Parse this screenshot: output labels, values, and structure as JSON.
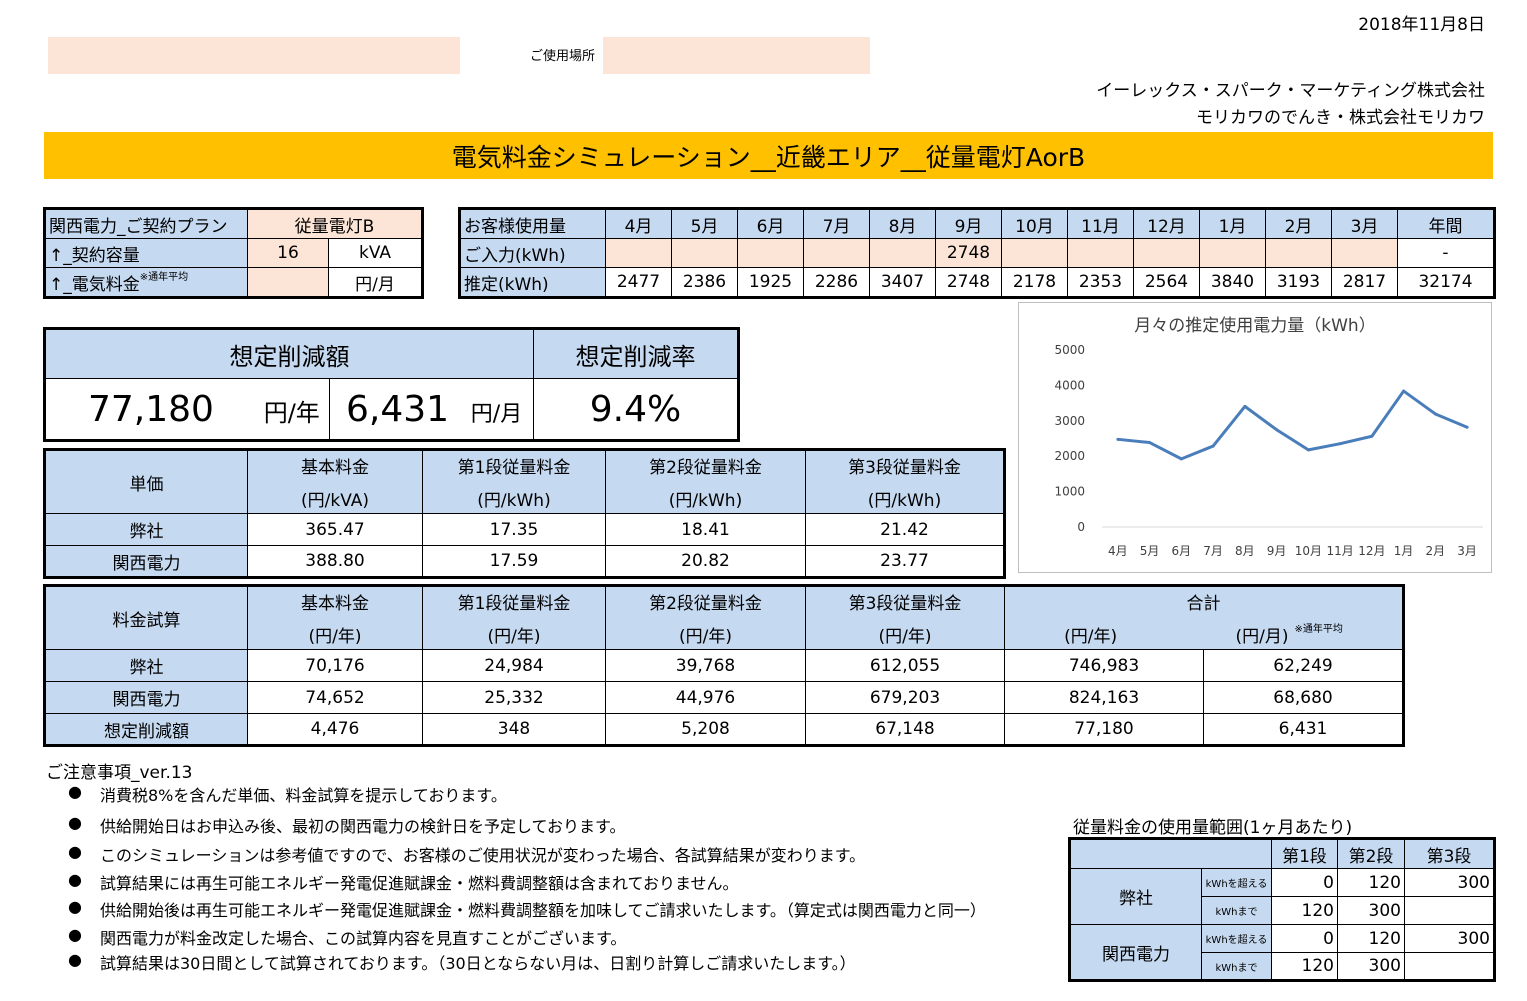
{
  "header": {
    "date": "2018年11月8日",
    "place_label": "ご使用場所",
    "company1": "イーレックス・スパーク・マーケティング株式会社",
    "company2": "モリカワのでんき・株式会社モリカワ"
  },
  "banner": {
    "title": "電気料金シミュレーション__近畿エリア__従量電灯AorB"
  },
  "contract": {
    "rows": [
      {
        "label": "関西電力_ご契約プラン",
        "value": "従量電灯B",
        "unit": ""
      },
      {
        "label": "↑_契約容量",
        "value": "16",
        "unit": "kVA"
      },
      {
        "label": "↑_電気料金",
        "note": "※通年平均",
        "value": "",
        "unit": "円/月"
      }
    ]
  },
  "usage": {
    "header_label": "お客様使用量",
    "months": [
      "4月",
      "5月",
      "6月",
      "7月",
      "8月",
      "9月",
      "10月",
      "11月",
      "12月",
      "1月",
      "2月",
      "3月",
      "年間"
    ],
    "input_label": "ご入力(kWh)",
    "input_values": [
      "",
      "",
      "",
      "",
      "",
      "2748",
      "",
      "",
      "",
      "",
      "",
      "",
      "-"
    ],
    "estimate_label": "推定(kWh)",
    "estimate_values": [
      "2477",
      "2386",
      "1925",
      "2286",
      "3407",
      "2748",
      "2178",
      "2353",
      "2564",
      "3840",
      "3193",
      "2817",
      "32174"
    ]
  },
  "savings": {
    "amount_label": "想定削減額",
    "rate_label": "想定削減率",
    "yearly_value": "77,180",
    "yearly_unit": "円/年",
    "monthly_value": "6,431",
    "monthly_unit": "円/月",
    "rate_value": "9.4%"
  },
  "unit_price": {
    "corner": "単価",
    "headers": [
      {
        "top": "基本料金",
        "bottom": "(円/kVA)"
      },
      {
        "top": "第1段従量料金",
        "bottom": "(円/kWh)"
      },
      {
        "top": "第2段従量料金",
        "bottom": "(円/kWh)"
      },
      {
        "top": "第3段従量料金",
        "bottom": "(円/kWh)"
      }
    ],
    "rows": [
      {
        "label": "弊社",
        "values": [
          "365.47",
          "17.35",
          "18.41",
          "21.42"
        ]
      },
      {
        "label": "関西電力",
        "values": [
          "388.80",
          "17.59",
          "20.82",
          "23.77"
        ]
      }
    ]
  },
  "calc": {
    "corner": "料金試算",
    "headers": [
      {
        "top": "基本料金",
        "bottom": "(円/年)"
      },
      {
        "top": "第1段従量料金",
        "bottom": "(円/年)"
      },
      {
        "top": "第2段従量料金",
        "bottom": "(円/年)"
      },
      {
        "top": "第3段従量料金",
        "bottom": "(円/年)"
      }
    ],
    "total_label": "合計",
    "total_year": "(円/年)",
    "total_month": "(円/月)",
    "total_note": "※通年平均",
    "rows": [
      {
        "label": "弊社",
        "values": [
          "70,176",
          "24,984",
          "39,768",
          "612,055",
          "746,983",
          "62,249"
        ]
      },
      {
        "label": "関西電力",
        "values": [
          "74,652",
          "25,332",
          "44,976",
          "679,203",
          "824,163",
          "68,680"
        ]
      },
      {
        "label": "想定削減額",
        "values": [
          "4,476",
          "348",
          "5,208",
          "67,148",
          "77,180",
          "6,431"
        ]
      }
    ]
  },
  "notes": {
    "title": "ご注意事項_ver.13",
    "bullet": "●",
    "items": [
      "消費税8%を含んだ単価、料金試算を提示しております。",
      "供給開始日はお申込み後、最初の関西電力の検針日を予定しております。",
      "このシミュレーションは参考値ですので、お客様のご使用状況が変わった場合、各試算結果が変わります。",
      "試算結果には再生可能エネルギー発電促進賦課金・燃料費調整額は含まれておりません。",
      "供給開始後は再生可能エネルギー発電促進賦課金・燃料費調整額を加味してご請求いたします。（算定式は関西電力と同一）",
      "関西電力が料金改定した場合、この試算内容を見直すことがございます。",
      "試算結果は30日間として試算されております。（30日とならない月は、日割り計算しご請求いたします。）"
    ]
  },
  "range": {
    "title": "従量料金の使用量範囲(1ヶ月あたり)",
    "headers": [
      "第1段",
      "第2段",
      "第3段"
    ],
    "over_label": "kWhを超える",
    "upto_label": "kWhまで",
    "rows": [
      {
        "label": "弊社",
        "over": [
          "0",
          "120",
          "300"
        ],
        "upto": [
          "120",
          "300",
          ""
        ]
      },
      {
        "label": "関西電力",
        "over": [
          "0",
          "120",
          "300"
        ],
        "upto": [
          "120",
          "300",
          ""
        ]
      }
    ]
  },
  "chart_data": {
    "type": "line",
    "title": "月々の推定使用電力量（kWh）",
    "categories": [
      "4月",
      "5月",
      "6月",
      "7月",
      "8月",
      "9月",
      "10月",
      "11月",
      "12月",
      "1月",
      "2月",
      "3月"
    ],
    "series": [
      {
        "values": [
          2477,
          2386,
          1925,
          2286,
          3407,
          2748,
          2178,
          2353,
          2564,
          3840,
          3193,
          2817
        ]
      }
    ],
    "ylim": [
      0,
      5000
    ],
    "yticks": [
      "0",
      "1000",
      "2000",
      "3000",
      "4000",
      "5000"
    ],
    "grid": false,
    "legend": "none",
    "color": "#4a7ebb"
  }
}
